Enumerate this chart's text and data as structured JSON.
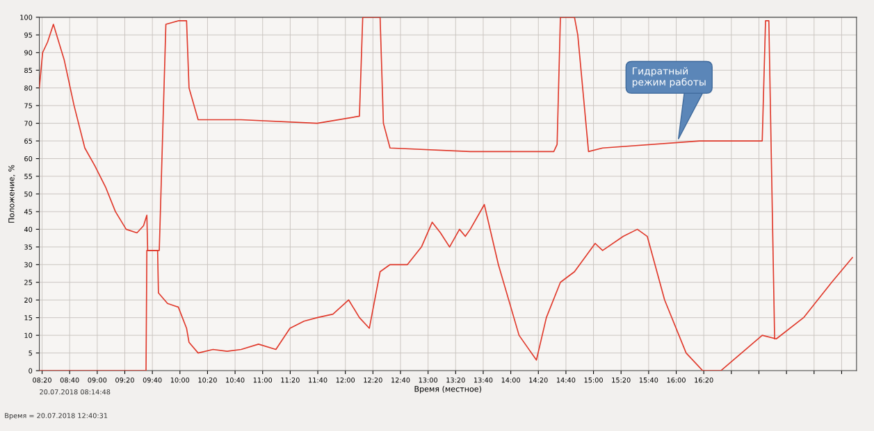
{
  "chart_data": {
    "type": "line",
    "ylabel": "Положение, %",
    "xlabel": "Время (местное)",
    "annotations": [
      "Гидратный\nрежим работы",
      "20.07.2018 08:14:48",
      "Время = 20.07.2018 12:40:31"
    ],
    "series": [
      {
        "color": "#e0392b",
        "x": [
          8.3,
          8.34,
          8.4,
          8.47,
          8.6,
          8.72,
          8.85,
          8.97,
          9.1,
          9.22,
          9.35,
          9.48,
          9.56,
          9.6,
          9.61,
          9.73,
          9.74,
          9.85,
          9.98,
          10.08,
          10.11,
          10.22,
          10.4,
          10.57,
          10.74,
          10.95,
          11.16,
          11.33,
          11.5,
          11.66,
          11.85,
          12.04,
          12.17,
          12.29,
          12.42,
          12.54,
          12.75,
          12.92,
          13.05,
          13.15,
          13.26,
          13.38,
          13.45,
          13.51,
          13.68,
          13.85,
          14.1,
          14.31,
          14.43,
          14.6,
          14.77,
          15.02,
          15.11,
          15.36,
          15.53,
          15.65,
          15.86,
          16.12,
          16.32,
          16.54,
          16.79,
          17.04,
          17.21,
          17.54,
          17.88,
          18.13
        ],
        "values": [
          80,
          90,
          93,
          98,
          88,
          75,
          63,
          58,
          52,
          45,
          40,
          39,
          41,
          44,
          34,
          34,
          22,
          19,
          18,
          12,
          8,
          5,
          6,
          5.5,
          6,
          7.5,
          6,
          12,
          14,
          15,
          16,
          20,
          15,
          12,
          28,
          30,
          30,
          35,
          42,
          39,
          35,
          40,
          38,
          40,
          47,
          30,
          10,
          3,
          15,
          25,
          28,
          36,
          34,
          38,
          40,
          38,
          20,
          5,
          0,
          0,
          5,
          10,
          9,
          15,
          25,
          32
        ]
      },
      {
        "color": "#e0392b",
        "x": [
          8.3,
          9.59,
          9.6,
          9.75,
          9.83,
          9.98,
          10.08,
          10.11,
          10.22,
          10.74,
          11.66,
          12.17,
          12.21,
          12.42,
          12.46,
          12.54,
          13.51,
          14.52,
          14.56,
          14.6,
          14.77,
          14.81,
          14.94,
          15.11,
          16.28,
          17.04,
          17.08,
          17.12,
          17.19
        ],
        "values": [
          0,
          0,
          34,
          34,
          98,
          99,
          99,
          80,
          71,
          71,
          70,
          72,
          100,
          100,
          70,
          63,
          62,
          62,
          64,
          100,
          100,
          95,
          62,
          63,
          65,
          65,
          99,
          99,
          9
        ]
      }
    ],
    "xlim": [
      8.3,
      18.18
    ],
    "ylim": [
      0,
      100
    ],
    "xticks": [
      {
        "value": 8.3333,
        "label": "08:20"
      },
      {
        "value": 8.6667,
        "label": "08:40"
      },
      {
        "value": 9.0,
        "label": "09:00"
      },
      {
        "value": 9.3333,
        "label": "09:20"
      },
      {
        "value": 9.6667,
        "label": "09:40"
      },
      {
        "value": 10.0,
        "label": "10:00"
      },
      {
        "value": 10.3333,
        "label": "10:20"
      },
      {
        "value": 10.6667,
        "label": "10:40"
      },
      {
        "value": 11.0,
        "label": "11:00"
      },
      {
        "value": 11.3333,
        "label": "11:20"
      },
      {
        "value": 11.6667,
        "label": "11:40"
      },
      {
        "value": 12.0,
        "label": "12:00"
      },
      {
        "value": 12.3333,
        "label": "12:20"
      },
      {
        "value": 12.6667,
        "label": "12:40"
      },
      {
        "value": 13.0,
        "label": "13:00"
      },
      {
        "value": 13.3333,
        "label": "13:20"
      },
      {
        "value": 13.6667,
        "label": "13:40"
      },
      {
        "value": 14.0,
        "label": "14:00"
      },
      {
        "value": 14.3333,
        "label": "14:20"
      },
      {
        "value": 14.6667,
        "label": "14:40"
      },
      {
        "value": 15.0,
        "label": "15:00"
      },
      {
        "value": 15.3333,
        "label": "15:20"
      },
      {
        "value": 15.6667,
        "label": "15:40"
      },
      {
        "value": 16.0,
        "label": "16:00"
      },
      {
        "value": 16.3333,
        "label": "16:20"
      },
      {
        "value": 16.6667,
        "label": null
      },
      {
        "value": 17.0,
        "label": null
      },
      {
        "value": 17.3333,
        "label": null
      },
      {
        "value": 17.6667,
        "label": null
      },
      {
        "value": 18.0,
        "label": null
      }
    ],
    "yticks": [
      0,
      5,
      10,
      15,
      20,
      25,
      30,
      35,
      40,
      45,
      50,
      55,
      60,
      65,
      70,
      75,
      80,
      85,
      90,
      95,
      100
    ],
    "grid": true,
    "marker": "none",
    "line_style": "solid"
  }
}
